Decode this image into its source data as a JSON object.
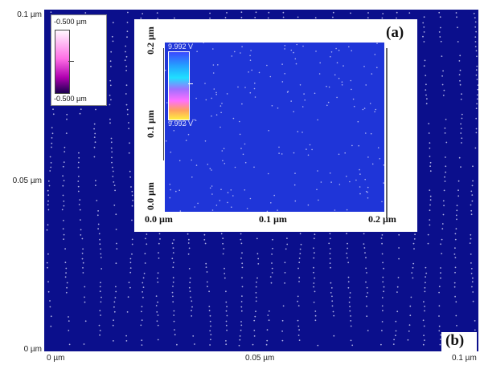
{
  "outer": {
    "y_ticks": [
      "0.1 µm",
      "0.05 µm",
      "0 µm"
    ],
    "x_ticks": [
      "0 µm",
      "0.05 µm",
      "0.1 µm"
    ],
    "legend_top": "-0.500 µm",
    "legend_bottom": "-0.500 µm",
    "panel_label": "(b)"
  },
  "inset": {
    "legend_top": "9.992 V",
    "legend_bottom": "9.992 V",
    "y_ticks": [
      "0.2 µm",
      "0.1 µm",
      "0.0 µm"
    ],
    "x_ticks": [
      "0.0 µm",
      "0.1 µm",
      "0.2 µm"
    ],
    "panel_label": "(a)"
  },
  "colors": {
    "outer_background": "#0b0f8c",
    "inset_background": "#1f35d8",
    "dots": "#e6e6ff"
  }
}
